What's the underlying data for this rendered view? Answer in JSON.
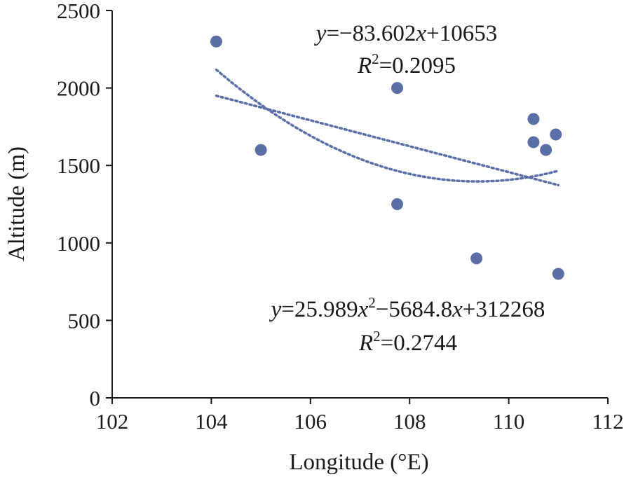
{
  "chart_data": {
    "type": "scatter",
    "xlabel": "Longitude (°E)",
    "ylabel": "Altitude (m)",
    "xlim": [
      102,
      112
    ],
    "ylim": [
      0,
      2500
    ],
    "xticks": [
      "102",
      "104",
      "106",
      "108",
      "110",
      "112"
    ],
    "yticks": [
      "0",
      "500",
      "1000",
      "1500",
      "2000",
      "2500"
    ],
    "grid": false,
    "marker_color": "#5b6fa6",
    "trendline_color": "#5b6fa6",
    "points": [
      {
        "x": 104.1,
        "y": 2300
      },
      {
        "x": 105.0,
        "y": 1600
      },
      {
        "x": 107.75,
        "y": 2000
      },
      {
        "x": 107.75,
        "y": 1250
      },
      {
        "x": 109.35,
        "y": 900
      },
      {
        "x": 110.5,
        "y": 1800
      },
      {
        "x": 110.5,
        "y": 1650
      },
      {
        "x": 110.75,
        "y": 1600
      },
      {
        "x": 110.95,
        "y": 1700
      },
      {
        "x": 111.0,
        "y": 800
      }
    ],
    "trendlines": [
      {
        "kind": "linear",
        "coefficients": [
          -83.602,
          10653
        ],
        "x_range": [
          104.1,
          111.0
        ],
        "r2": 0.2095
      },
      {
        "kind": "polynomial",
        "coefficients": [
          25.989,
          -5684.8,
          312268
        ],
        "x_range": [
          104.1,
          111.0
        ],
        "r2": 0.2744
      }
    ],
    "annotations": {
      "linear_equation": {
        "y": "y",
        "eq": "=−83.602",
        "x": "x",
        "tail": "+10653"
      },
      "linear_r2": {
        "R": "R",
        "sup": "2",
        "value": "=0.2095"
      },
      "poly_equation": {
        "y": "y",
        "eq1": "=25.989",
        "x1": "x",
        "sup": "2",
        "eq2": "−5684.8",
        "x2": "x",
        "tail": "+312268"
      },
      "poly_r2": {
        "R": "R",
        "sup": "2",
        "value": "=0.2744"
      }
    }
  }
}
